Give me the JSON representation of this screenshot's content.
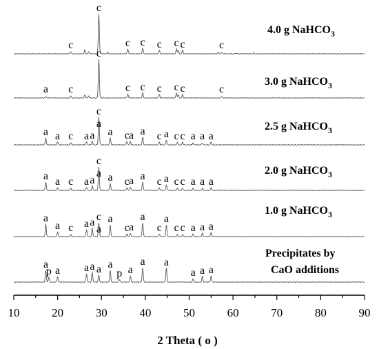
{
  "chart_data": {
    "type": "line",
    "xlabel": "2 Theta ( o )",
    "xlim": [
      10,
      90
    ],
    "x_ticks": [
      10,
      20,
      30,
      40,
      50,
      60,
      70,
      80,
      90
    ],
    "y_ticks": [],
    "series": [
      {
        "name": "4.0 g NaHCO3",
        "label_main": "4.0 g NaHCO",
        "label_sub": "3",
        "label_line2": "",
        "peaks": [
          {
            "x": 23.0,
            "h": 3
          },
          {
            "x": 26.2,
            "h": 5
          },
          {
            "x": 27.1,
            "h": 3
          },
          {
            "x": 29.4,
            "h": 58
          },
          {
            "x": 31.4,
            "h": 2
          },
          {
            "x": 36.0,
            "h": 7
          },
          {
            "x": 39.4,
            "h": 8
          },
          {
            "x": 43.2,
            "h": 5
          },
          {
            "x": 47.1,
            "h": 7
          },
          {
            "x": 47.5,
            "h": 5
          },
          {
            "x": 48.5,
            "h": 5
          },
          {
            "x": 56.6,
            "h": 2
          },
          {
            "x": 57.4,
            "h": 2
          },
          {
            "x": 60.7,
            "h": 1
          },
          {
            "x": 64.7,
            "h": 1
          }
        ],
        "annotations": [
          {
            "text": "c",
            "x": 29.4,
            "top": true
          },
          {
            "text": "c",
            "x": 23.0
          },
          {
            "text": "c",
            "x": 36.0
          },
          {
            "text": "c",
            "x": 39.4
          },
          {
            "text": "c",
            "x": 43.2
          },
          {
            "text": "c",
            "x": 47.1
          },
          {
            "text": "c",
            "x": 48.5
          },
          {
            "text": "c",
            "x": 57.4
          }
        ]
      },
      {
        "name": "3.0 g NaHCO3",
        "label_main": "3.0 g NaHCO",
        "label_sub": "3",
        "label_line2": "",
        "peaks": [
          {
            "x": 17.3,
            "h": 2
          },
          {
            "x": 23.0,
            "h": 3
          },
          {
            "x": 26.2,
            "h": 4
          },
          {
            "x": 27.1,
            "h": 3
          },
          {
            "x": 29.4,
            "h": 56
          },
          {
            "x": 36.0,
            "h": 6
          },
          {
            "x": 39.4,
            "h": 7
          },
          {
            "x": 43.2,
            "h": 5
          },
          {
            "x": 47.1,
            "h": 7
          },
          {
            "x": 47.5,
            "h": 4
          },
          {
            "x": 48.5,
            "h": 5
          },
          {
            "x": 57.4,
            "h": 2
          }
        ],
        "annotations": [
          {
            "text": "c",
            "x": 29.4,
            "top": true
          },
          {
            "text": "a",
            "x": 17.3
          },
          {
            "text": "c",
            "x": 23.0
          },
          {
            "text": "c",
            "x": 36.0
          },
          {
            "text": "c",
            "x": 39.4
          },
          {
            "text": "c",
            "x": 43.2
          },
          {
            "text": "c",
            "x": 47.1
          },
          {
            "text": "c",
            "x": 48.5
          },
          {
            "text": "c",
            "x": 57.4
          }
        ]
      },
      {
        "name": "2.5 g NaHCO3",
        "label_main": "2.5 g NaHCO",
        "label_sub": "3",
        "label_line2": "",
        "peaks": [
          {
            "x": 17.3,
            "h": 10
          },
          {
            "x": 20.0,
            "h": 4
          },
          {
            "x": 23.0,
            "h": 3
          },
          {
            "x": 26.6,
            "h": 4
          },
          {
            "x": 27.9,
            "h": 5
          },
          {
            "x": 29.4,
            "h": 40
          },
          {
            "x": 32.0,
            "h": 10
          },
          {
            "x": 35.8,
            "h": 5
          },
          {
            "x": 36.6,
            "h": 5
          },
          {
            "x": 39.4,
            "h": 11
          },
          {
            "x": 43.2,
            "h": 4
          },
          {
            "x": 44.8,
            "h": 7
          },
          {
            "x": 47.3,
            "h": 4
          },
          {
            "x": 48.5,
            "h": 4
          },
          {
            "x": 50.9,
            "h": 3
          },
          {
            "x": 53.0,
            "h": 3
          },
          {
            "x": 55.0,
            "h": 4
          }
        ],
        "annotations": [
          {
            "text": "c",
            "x": 29.4,
            "top": true
          },
          {
            "text": "a",
            "x": 29.4,
            "second": true
          },
          {
            "text": "a",
            "x": 17.3
          },
          {
            "text": "a",
            "x": 20.0
          },
          {
            "text": "c",
            "x": 23.0
          },
          {
            "text": "a",
            "x": 26.6
          },
          {
            "text": "a",
            "x": 27.9
          },
          {
            "text": "a",
            "x": 32.0
          },
          {
            "text": "c",
            "x": 35.8
          },
          {
            "text": "a",
            "x": 36.8
          },
          {
            "text": "a",
            "x": 39.4
          },
          {
            "text": "c",
            "x": 43.2
          },
          {
            "text": "a",
            "x": 44.8
          },
          {
            "text": "c",
            "x": 47.1
          },
          {
            "text": "c",
            "x": 48.5
          },
          {
            "text": "a",
            "x": 50.9
          },
          {
            "text": "a",
            "x": 53.0
          },
          {
            "text": "a",
            "x": 55.0
          }
        ]
      },
      {
        "name": "2.0 g NaHCO3",
        "label_main": "2.0 g NaHCO",
        "label_sub": "3",
        "label_line2": "",
        "peaks": [
          {
            "x": 17.3,
            "h": 12
          },
          {
            "x": 20.0,
            "h": 4
          },
          {
            "x": 23.0,
            "h": 3
          },
          {
            "x": 26.6,
            "h": 4
          },
          {
            "x": 27.9,
            "h": 6
          },
          {
            "x": 29.4,
            "h": 34
          },
          {
            "x": 32.0,
            "h": 10
          },
          {
            "x": 35.8,
            "h": 4
          },
          {
            "x": 36.6,
            "h": 5
          },
          {
            "x": 39.4,
            "h": 12
          },
          {
            "x": 43.2,
            "h": 4
          },
          {
            "x": 44.8,
            "h": 8
          },
          {
            "x": 47.3,
            "h": 3
          },
          {
            "x": 48.5,
            "h": 3
          },
          {
            "x": 50.9,
            "h": 3
          },
          {
            "x": 53.0,
            "h": 3
          },
          {
            "x": 55.0,
            "h": 4
          }
        ],
        "annotations": [
          {
            "text": "c",
            "x": 29.4,
            "top": true
          },
          {
            "text": "a",
            "x": 29.4,
            "second": true
          },
          {
            "text": "a",
            "x": 17.3
          },
          {
            "text": "a",
            "x": 20.0
          },
          {
            "text": "c",
            "x": 23.0
          },
          {
            "text": "a",
            "x": 26.6
          },
          {
            "text": "a",
            "x": 27.9
          },
          {
            "text": "a",
            "x": 32.0
          },
          {
            "text": "c",
            "x": 35.8
          },
          {
            "text": "a",
            "x": 36.8
          },
          {
            "text": "a",
            "x": 39.4
          },
          {
            "text": "c",
            "x": 43.2
          },
          {
            "text": "a",
            "x": 44.8
          },
          {
            "text": "c",
            "x": 47.1
          },
          {
            "text": "c",
            "x": 48.5
          },
          {
            "text": "a",
            "x": 50.9
          },
          {
            "text": "a",
            "x": 53.0
          },
          {
            "text": "a",
            "x": 55.0
          }
        ]
      },
      {
        "name": "1.0 g NaHCO3",
        "label_main": "1.0 g NaHCO",
        "label_sub": "3",
        "label_line2": "",
        "peaks": [
          {
            "x": 17.3,
            "h": 18
          },
          {
            "x": 20.0,
            "h": 7
          },
          {
            "x": 23.0,
            "h": 3
          },
          {
            "x": 26.6,
            "h": 10
          },
          {
            "x": 27.9,
            "h": 12
          },
          {
            "x": 29.4,
            "h": 20
          },
          {
            "x": 32.0,
            "h": 17
          },
          {
            "x": 35.8,
            "h": 4
          },
          {
            "x": 36.6,
            "h": 5
          },
          {
            "x": 39.4,
            "h": 20
          },
          {
            "x": 43.2,
            "h": 4
          },
          {
            "x": 44.8,
            "h": 17
          },
          {
            "x": 47.3,
            "h": 3
          },
          {
            "x": 48.5,
            "h": 3
          },
          {
            "x": 50.9,
            "h": 4
          },
          {
            "x": 53.0,
            "h": 5
          },
          {
            "x": 55.0,
            "h": 6
          }
        ],
        "annotations": [
          {
            "text": "c",
            "x": 29.4,
            "top": true
          },
          {
            "text": "a",
            "x": 29.4,
            "second": true
          },
          {
            "text": "a",
            "x": 17.3
          },
          {
            "text": "a",
            "x": 20.0
          },
          {
            "text": "c",
            "x": 23.0
          },
          {
            "text": "a",
            "x": 26.6
          },
          {
            "text": "a",
            "x": 27.9
          },
          {
            "text": "a",
            "x": 32.0
          },
          {
            "text": "c",
            "x": 35.8
          },
          {
            "text": "a",
            "x": 36.8
          },
          {
            "text": "a",
            "x": 39.4
          },
          {
            "text": "c",
            "x": 43.2
          },
          {
            "text": "a",
            "x": 44.8
          },
          {
            "text": "c",
            "x": 47.1
          },
          {
            "text": "c",
            "x": 48.5
          },
          {
            "text": "a",
            "x": 50.9
          },
          {
            "text": "a",
            "x": 53.0
          },
          {
            "text": "a",
            "x": 55.0
          }
        ]
      },
      {
        "name": "Precipitates by CaO additions",
        "label_main": "Precipitates by",
        "label_sub": "",
        "label_line2": "CaO additions",
        "peaks": [
          {
            "x": 17.3,
            "h": 17
          },
          {
            "x": 18.0,
            "h": 7
          },
          {
            "x": 20.0,
            "h": 8
          },
          {
            "x": 26.6,
            "h": 12
          },
          {
            "x": 27.9,
            "h": 14
          },
          {
            "x": 29.4,
            "h": 10
          },
          {
            "x": 32.0,
            "h": 17
          },
          {
            "x": 34.1,
            "h": 4
          },
          {
            "x": 36.6,
            "h": 9
          },
          {
            "x": 39.4,
            "h": 21
          },
          {
            "x": 44.8,
            "h": 20
          },
          {
            "x": 50.9,
            "h": 5
          },
          {
            "x": 53.0,
            "h": 8
          },
          {
            "x": 55.0,
            "h": 9
          }
        ],
        "annotations": [
          {
            "text": "a",
            "x": 17.3,
            "top": true
          },
          {
            "text": "p",
            "x": 18.0
          },
          {
            "text": "a",
            "x": 20.0
          },
          {
            "text": "a",
            "x": 26.6
          },
          {
            "text": "a",
            "x": 27.9
          },
          {
            "text": "a",
            "x": 29.4
          },
          {
            "text": "a",
            "x": 32.0,
            "top": true
          },
          {
            "text": "p",
            "x": 34.1
          },
          {
            "text": "a",
            "x": 36.6
          },
          {
            "text": "a",
            "x": 39.4
          },
          {
            "text": "a",
            "x": 44.8
          },
          {
            "text": "a",
            "x": 50.9
          },
          {
            "text": "a",
            "x": 53.0
          },
          {
            "text": "a",
            "x": 55.0
          }
        ]
      }
    ]
  }
}
